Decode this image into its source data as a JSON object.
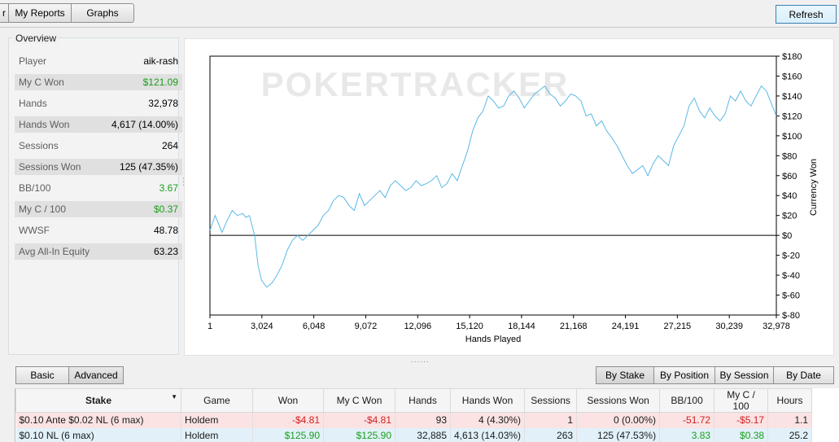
{
  "toolbar": {
    "cut_tab": "r",
    "tabs": [
      "My Reports",
      "Graphs"
    ],
    "refresh_label": "Refresh"
  },
  "overview": {
    "title": "Overview",
    "rows": [
      {
        "label": "Player",
        "value": "aik-rash",
        "green": false
      },
      {
        "label": "My C Won",
        "value": "$121.09",
        "green": true
      },
      {
        "label": "Hands",
        "value": "32,978",
        "green": false
      },
      {
        "label": "Hands Won",
        "value": "4,617 (14.00%)",
        "green": false
      },
      {
        "label": "Sessions",
        "value": "264",
        "green": false
      },
      {
        "label": "Sessions Won",
        "value": "125 (47.35%)",
        "green": false
      },
      {
        "label": "BB/100",
        "value": "3.67",
        "green": true
      },
      {
        "label": "My C / 100",
        "value": "$0.37",
        "green": true
      },
      {
        "label": "WWSF",
        "value": "48.78",
        "green": false
      },
      {
        "label": "Avg All-In Equity",
        "value": "63.23",
        "green": false
      }
    ]
  },
  "chart_data": {
    "type": "line",
    "watermark": "POKERTRACKER",
    "xlabel": "Hands Played",
    "ylabel": "Currency Won",
    "xlim": [
      1,
      32978
    ],
    "ylim": [
      -80,
      180
    ],
    "x_ticks": [
      "1",
      "3,024",
      "6,048",
      "9,072",
      "12,096",
      "15,120",
      "18,144",
      "21,168",
      "24,191",
      "27,215",
      "30,239",
      "32,978"
    ],
    "x_tick_values": [
      1,
      3024,
      6048,
      9072,
      12096,
      15120,
      18144,
      21168,
      24191,
      27215,
      30239,
      32978
    ],
    "y_ticks": [
      "$180",
      "$160",
      "$140",
      "$120",
      "$100",
      "$80",
      "$60",
      "$40",
      "$20",
      "$0",
      "$-20",
      "$-40",
      "$-60",
      "$-80"
    ],
    "y_tick_values": [
      180,
      160,
      140,
      120,
      100,
      80,
      60,
      40,
      20,
      0,
      -20,
      -40,
      -60,
      -80
    ],
    "line_color": "#5bb8e8",
    "series": [
      {
        "x": [
          1,
          300,
          700,
          1000,
          1300,
          1600,
          1900,
          2100,
          2300,
          2600,
          2800,
          3000,
          3300,
          3600,
          3900,
          4200,
          4500,
          4800,
          5100,
          5400,
          5700,
          6000,
          6300,
          6600,
          6900,
          7200,
          7500,
          7800,
          8100,
          8400,
          8700,
          9000,
          9300,
          9600,
          9900,
          10200,
          10500,
          10800,
          11100,
          11400,
          11700,
          12000,
          12300,
          12600,
          12900,
          13200,
          13500,
          13800,
          14100,
          14400,
          14700,
          15000,
          15300,
          15600,
          15900,
          16200,
          16500,
          16800,
          17100,
          17400,
          17700,
          18000,
          18300,
          18600,
          18900,
          19200,
          19500,
          19800,
          20100,
          20400,
          20700,
          21000,
          21300,
          21600,
          21900,
          22200,
          22500,
          22800,
          23100,
          23400,
          23700,
          24000,
          24300,
          24600,
          24900,
          25200,
          25500,
          25800,
          26100,
          26400,
          26700,
          27000,
          27300,
          27600,
          27900,
          28200,
          28500,
          28800,
          29100,
          29400,
          29700,
          30000,
          30300,
          30600,
          30900,
          31200,
          31500,
          31800,
          32100,
          32400,
          32700,
          32978
        ],
        "y": [
          5,
          20,
          3,
          15,
          25,
          20,
          22,
          18,
          20,
          0,
          -30,
          -45,
          -52,
          -48,
          -40,
          -30,
          -15,
          -5,
          0,
          -5,
          0,
          5,
          10,
          20,
          25,
          35,
          40,
          38,
          30,
          25,
          42,
          30,
          35,
          40,
          45,
          38,
          50,
          55,
          50,
          45,
          48,
          55,
          50,
          52,
          55,
          60,
          48,
          52,
          62,
          55,
          70,
          85,
          105,
          118,
          125,
          140,
          135,
          128,
          130,
          140,
          145,
          138,
          128,
          135,
          142,
          146,
          150,
          142,
          138,
          130,
          135,
          142,
          140,
          135,
          120,
          122,
          110,
          115,
          105,
          98,
          90,
          80,
          70,
          62,
          66,
          70,
          60,
          72,
          80,
          75,
          70,
          90,
          100,
          110,
          130,
          138,
          125,
          118,
          128,
          120,
          115,
          122,
          140,
          135,
          145,
          135,
          130,
          140,
          150,
          145,
          132,
          120
        ]
      }
    ]
  },
  "view_tabs": {
    "basic": "Basic",
    "advanced": "Advanced",
    "by_stake": "By Stake",
    "by_position": "By Position",
    "by_session": "By Session",
    "by_date": "By Date"
  },
  "table": {
    "headers": [
      "Stake",
      "Game",
      "Won",
      "My C Won",
      "Hands",
      "Hands Won",
      "Sessions",
      "Sessions Won",
      "BB/100",
      "My C / 100",
      "Hours"
    ],
    "sort_arrow": "▼",
    "rows": [
      [
        "$0.10 Ante $0.02 NL (6 max)",
        "Holdem",
        "-$4.81",
        "-$4.81",
        "93",
        "4 (4.30%)",
        "1",
        "0 (0.00%)",
        "-51.72",
        "-$5.17",
        "1.1"
      ],
      [
        "$0.10 NL (6 max)",
        "Holdem",
        "$125.90",
        "$125.90",
        "32,885",
        "4,613 (14.03%)",
        "263",
        "125 (47.53%)",
        "3.83",
        "$0.38",
        "25.2"
      ]
    ]
  },
  "splitter_glyph": "......",
  "vsplitter_glyph": "⋮"
}
